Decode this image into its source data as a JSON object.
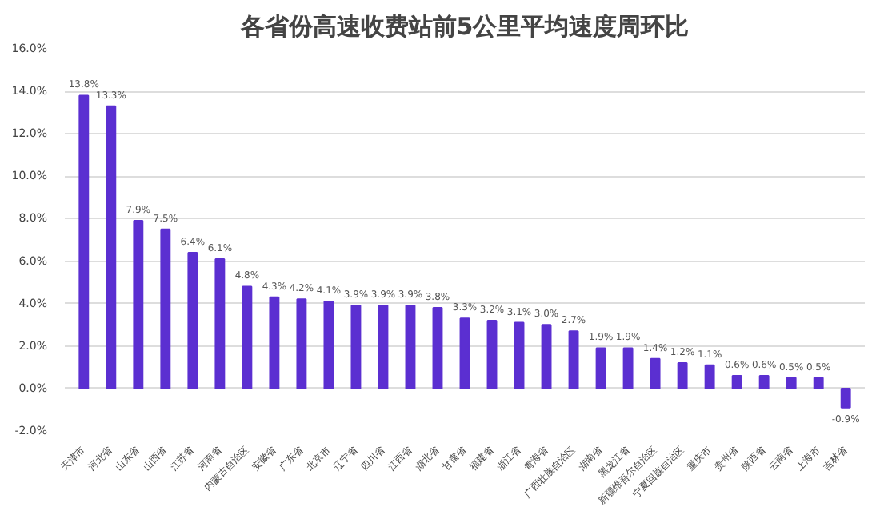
{
  "chart_data": {
    "type": "bar",
    "title": "各省份高速收费站前5公里平均速度周环比",
    "categories": [
      "天津市",
      "河北省",
      "山东省",
      "山西省",
      "江苏省",
      "河南省",
      "内蒙古自治区",
      "安徽省",
      "广东省",
      "北京市",
      "辽宁省",
      "四川省",
      "江西省",
      "湖北省",
      "甘肃省",
      "福建省",
      "浙江省",
      "青海省",
      "广西壮族自治区",
      "湖南省",
      "黑龙江省",
      "新疆维吾尔自治区",
      "宁夏回族自治区",
      "重庆市",
      "贵州省",
      "陕西省",
      "云南省",
      "上海市",
      "吉林省"
    ],
    "values": [
      13.8,
      13.3,
      7.9,
      7.5,
      6.4,
      6.1,
      4.8,
      4.3,
      4.2,
      4.1,
      3.9,
      3.9,
      3.9,
      3.8,
      3.3,
      3.2,
      3.1,
      3.0,
      2.7,
      1.9,
      1.9,
      1.4,
      1.2,
      1.1,
      0.6,
      0.6,
      0.5,
      0.5,
      -0.9
    ],
    "value_labels": [
      "13.8%",
      "13.3%",
      "7.9%",
      "7.5%",
      "6.4%",
      "6.1%",
      "4.8%",
      "4.3%",
      "4.2%",
      "4.1%",
      "3.9%",
      "3.9%",
      "3.9%",
      "3.8%",
      "3.3%",
      "3.2%",
      "3.1%",
      "3.0%",
      "2.7%",
      "1.9%",
      "1.9%",
      "1.4%",
      "1.2%",
      "1.1%",
      "0.6%",
      "0.6%",
      "0.5%",
      "0.5%",
      "-0.9%"
    ],
    "color": "#5b2fd1",
    "ylim": [
      -2,
      16
    ],
    "yticks": [
      {
        "value": -2,
        "label": "-2.0%"
      },
      {
        "value": 0,
        "label": "0.0%"
      },
      {
        "value": 2,
        "label": "2.0%"
      },
      {
        "value": 4,
        "label": "4.0%"
      },
      {
        "value": 6,
        "label": "6.0%"
      },
      {
        "value": 8,
        "label": "8.0%"
      },
      {
        "value": 10,
        "label": "10.0%"
      },
      {
        "value": 12,
        "label": "12.0%"
      },
      {
        "value": 14,
        "label": "14.0%"
      },
      {
        "value": 16,
        "label": "16.0%"
      }
    ],
    "grid": "y"
  }
}
